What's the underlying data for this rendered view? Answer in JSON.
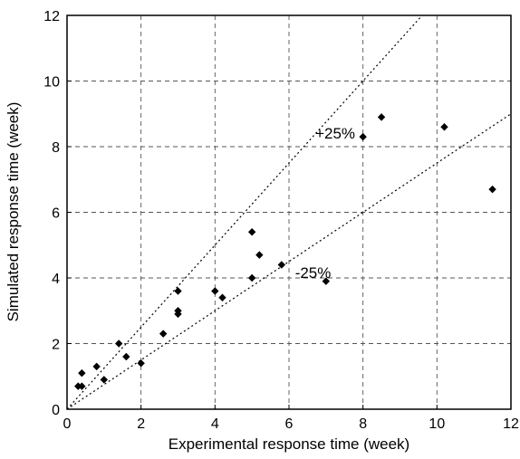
{
  "chart_data": {
    "type": "scatter",
    "xlabel": "Experimental response time (week)",
    "ylabel": "Simulated response time (week)",
    "xlim": [
      0,
      12
    ],
    "ylim": [
      0,
      12
    ],
    "xticks": [
      0,
      2,
      4,
      6,
      8,
      10,
      12
    ],
    "yticks": [
      0,
      2,
      4,
      6,
      8,
      10,
      12
    ],
    "grid": true,
    "marker": "diamond",
    "marker_color": "#000000",
    "points": [
      {
        "x": 0.3,
        "y": 0.7
      },
      {
        "x": 0.4,
        "y": 0.7
      },
      {
        "x": 0.4,
        "y": 1.1
      },
      {
        "x": 0.8,
        "y": 1.3
      },
      {
        "x": 1.0,
        "y": 0.9
      },
      {
        "x": 1.4,
        "y": 2.0
      },
      {
        "x": 1.6,
        "y": 1.6
      },
      {
        "x": 2.0,
        "y": 1.4
      },
      {
        "x": 2.6,
        "y": 2.3
      },
      {
        "x": 3.0,
        "y": 2.9
      },
      {
        "x": 3.0,
        "y": 3.0
      },
      {
        "x": 3.0,
        "y": 3.6
      },
      {
        "x": 4.0,
        "y": 3.6
      },
      {
        "x": 4.2,
        "y": 3.4
      },
      {
        "x": 5.0,
        "y": 4.0
      },
      {
        "x": 5.0,
        "y": 5.4
      },
      {
        "x": 5.2,
        "y": 4.7
      },
      {
        "x": 5.8,
        "y": 4.4
      },
      {
        "x": 7.0,
        "y": 3.9
      },
      {
        "x": 8.0,
        "y": 8.3
      },
      {
        "x": 8.5,
        "y": 8.9
      },
      {
        "x": 10.2,
        "y": 8.6
      },
      {
        "x": 11.5,
        "y": 6.7
      }
    ],
    "reference_lines": [
      {
        "label": "+25%",
        "slope": 1.25,
        "style": "dotted"
      },
      {
        "label": "-25%",
        "slope": 0.75,
        "style": "dotted"
      }
    ]
  }
}
